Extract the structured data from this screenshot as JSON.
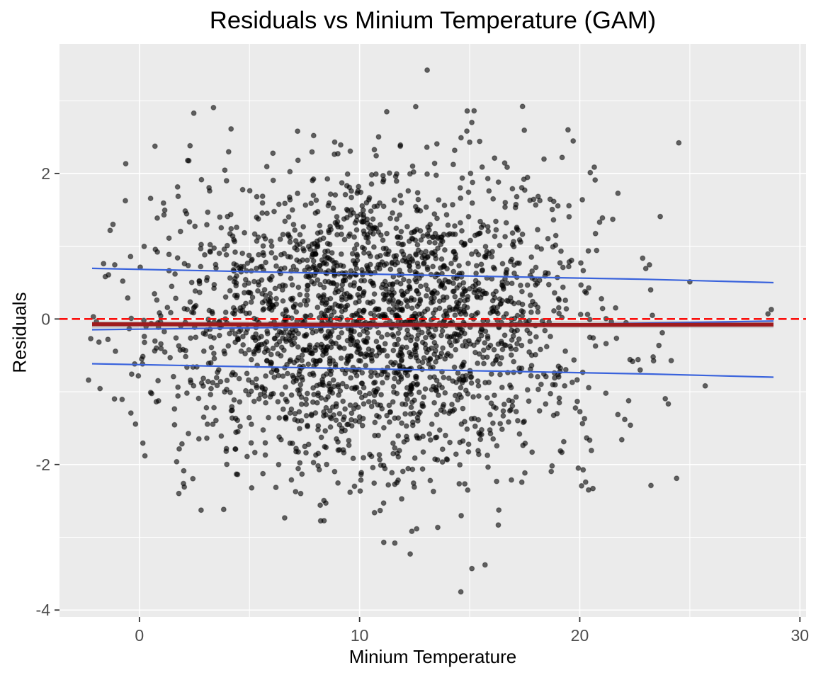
{
  "chart_data": {
    "type": "scatter",
    "title": "Residuals vs Minium Temperature (GAM)",
    "xlabel": "Minium Temperature",
    "ylabel": "Residuals",
    "xlim": [
      -3.63,
      30.28
    ],
    "ylim": [
      -4.095,
      3.78
    ],
    "x_ticks": [
      0,
      10,
      20,
      30
    ],
    "y_ticks": [
      -4,
      -2,
      0,
      2
    ],
    "x_minor_ticks": [
      5,
      15,
      25
    ],
    "y_minor_ticks": [
      -3,
      -1,
      1,
      3
    ],
    "grid": true,
    "legend": "none",
    "style": {
      "panel_bg": "#EBEBEB",
      "grid_major_color": "#FFFFFF",
      "grid_minor_color": "#FFFFFF",
      "tick_label_color": "#4D4D4D",
      "tick_mark_color": "#333333",
      "point_color": "#000000",
      "point_fill_opacity": 0.6,
      "point_stroke_opacity": 0.35,
      "point_radius": 3.4,
      "point_stroke_width": 1.2
    },
    "scatter_generation": {
      "seed": 20240613,
      "n": 2400,
      "x_mean": 10.7,
      "x_sd": 5.0,
      "x_min": -2.35,
      "x_max": 24.2,
      "y_mean": -0.04,
      "y_sd": 1.06,
      "y_min": -2.95,
      "y_max": 2.95,
      "max_radius": 3.45
    },
    "highlight_points": [
      [
        13.07,
        3.42
      ],
      [
        17.4,
        2.92
      ],
      [
        15.2,
        2.86
      ],
      [
        24.5,
        2.42
      ],
      [
        25.0,
        0.51
      ],
      [
        24.4,
        -2.19
      ],
      [
        25.7,
        -0.92
      ],
      [
        28.55,
        0.07
      ],
      [
        28.7,
        0.13
      ],
      [
        20.4,
        -2.35
      ],
      [
        20.6,
        -2.33
      ],
      [
        14.6,
        -3.75
      ],
      [
        15.1,
        -3.43
      ],
      [
        15.7,
        -3.38
      ],
      [
        12.3,
        -3.23
      ],
      [
        11.1,
        -3.07
      ],
      [
        11.6,
        -3.08
      ],
      [
        -2.21,
        -0.27
      ],
      [
        -2.31,
        -0.84
      ],
      [
        -1.63,
        0.76
      ],
      [
        -1.2,
        1.3
      ],
      [
        2.3,
        2.38
      ],
      [
        19.2,
        2.22
      ],
      [
        20.7,
        1.91
      ],
      [
        21.5,
        1.37
      ],
      [
        23.3,
        0.05
      ],
      [
        23.75,
        -0.19
      ],
      [
        22.3,
        -1.46
      ]
    ],
    "zero_line": {
      "y": 0,
      "color": "#FB0F0C",
      "style": "dashed",
      "width": 2.6
    },
    "se_ribbon": {
      "x_start": -2.15,
      "x_end": 28.8,
      "y_top": -0.03,
      "y_bottom": -0.125,
      "color": "#666666",
      "opacity": 0.22
    },
    "gam_line": {
      "color": "#9E1B1E",
      "width": 5.5,
      "points": [
        [
          -2.15,
          -0.072
        ],
        [
          5,
          -0.076
        ],
        [
          10,
          -0.079
        ],
        [
          15,
          -0.081
        ],
        [
          20,
          -0.083
        ],
        [
          25,
          -0.08
        ],
        [
          28.8,
          -0.078
        ]
      ]
    },
    "middle_blue_line": {
      "color": "#3A63DC",
      "width": 2.2,
      "points": [
        [
          -2.15,
          -0.148
        ],
        [
          0,
          -0.14
        ],
        [
          4,
          -0.125
        ],
        [
          8,
          -0.112
        ],
        [
          12,
          -0.1
        ],
        [
          16,
          -0.085
        ],
        [
          20,
          -0.07
        ],
        [
          24,
          -0.052
        ],
        [
          28.8,
          -0.028
        ]
      ]
    },
    "upper_blue_line": {
      "color": "#3A63DC",
      "width": 2.2,
      "points": [
        [
          -2.15,
          0.695
        ],
        [
          3,
          0.663
        ],
        [
          8,
          0.632
        ],
        [
          13,
          0.602
        ],
        [
          18,
          0.573
        ],
        [
          23,
          0.545
        ],
        [
          28.8,
          0.5
        ]
      ]
    },
    "lower_blue_line": {
      "color": "#3A63DC",
      "width": 2.2,
      "points": [
        [
          -2.15,
          -0.615
        ],
        [
          3,
          -0.645
        ],
        [
          8,
          -0.672
        ],
        [
          13,
          -0.7
        ],
        [
          18,
          -0.727
        ],
        [
          23,
          -0.755
        ],
        [
          28.8,
          -0.8
        ]
      ]
    }
  }
}
